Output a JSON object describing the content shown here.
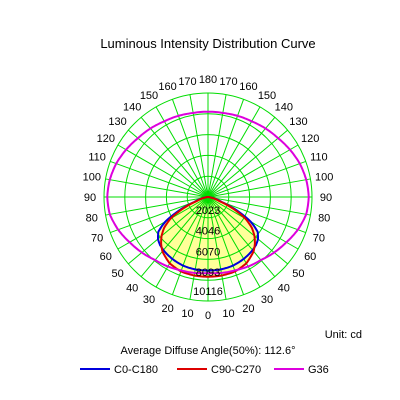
{
  "chart_data": {
    "type": "polar",
    "title": "Luminous Intensity Distribution Curve",
    "unit_label": "Unit: cd",
    "average_label": "Average Diffuse Angle(50%): 112.6°",
    "angle_labels_left": [
      "0",
      "10",
      "20",
      "30",
      "40",
      "50",
      "60",
      "70",
      "80",
      "90",
      "100",
      "110",
      "120",
      "130",
      "140",
      "150",
      "160",
      "170",
      "180"
    ],
    "angle_labels_right": [
      "10",
      "20",
      "30",
      "40",
      "50",
      "60",
      "70",
      "80",
      "90",
      "100",
      "110",
      "120",
      "130",
      "140",
      "150",
      "160",
      "170"
    ],
    "ring_labels": [
      "2023",
      "4046",
      "6070",
      "8093",
      "10116"
    ],
    "rmax": 10116,
    "grid": true,
    "fill_color": "#ffff99",
    "grid_color": "#00dd00",
    "series": [
      {
        "name": "C0-C180",
        "color": "#0000dd",
        "angles": [
          0,
          10,
          20,
          30,
          40,
          45,
          50,
          55,
          60,
          65,
          70,
          80,
          90
        ],
        "values": [
          7150,
          7150,
          7100,
          6950,
          6750,
          6600,
          6350,
          5900,
          4800,
          3100,
          1400,
          250,
          0
        ]
      },
      {
        "name": "C90-C270",
        "color": "#dd0000",
        "angles": [
          0,
          10,
          20,
          30,
          40,
          45,
          50,
          55,
          60,
          65,
          70,
          80,
          90
        ],
        "values": [
          7750,
          7750,
          7700,
          7450,
          6900,
          6450,
          5900,
          5200,
          4200,
          2700,
          1200,
          200,
          0
        ]
      },
      {
        "name": "G36",
        "color": "#dd00dd",
        "angles": [
          0,
          10,
          20,
          30,
          40,
          50,
          60,
          70,
          80,
          90,
          100,
          110,
          120,
          130,
          140,
          150,
          160,
          170,
          180
        ],
        "values": [
          7400,
          7500,
          7600,
          7800,
          8000,
          8400,
          8800,
          9300,
          9700,
          9800,
          9700,
          9500,
          9200,
          8900,
          8700,
          8500,
          8400,
          8300,
          8300
        ]
      }
    ]
  }
}
